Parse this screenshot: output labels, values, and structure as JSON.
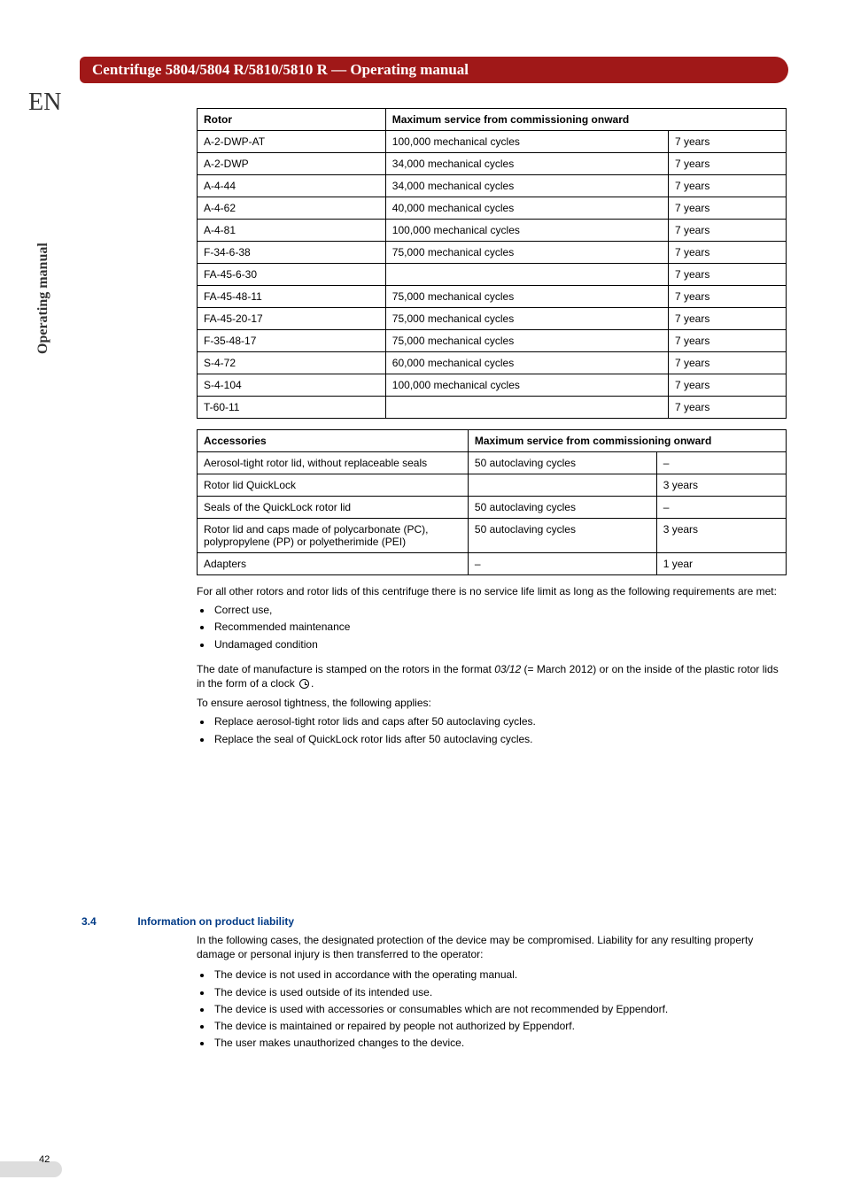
{
  "lang_badge": "EN",
  "side_label": "Operating manual",
  "header_title": "Centrifuge 5804/5804 R/5810/5810 R  —  Operating manual",
  "page_number": "42",
  "rotor_table": {
    "headers": {
      "rotor": "Rotor",
      "max_service": "Maximum service from commissioning onward"
    },
    "rows": [
      {
        "rotor": "A-2-DWP-AT",
        "cycles": "100,000 mechanical cycles",
        "years": "7 years"
      },
      {
        "rotor": "A-2-DWP",
        "cycles": "34,000 mechanical cycles",
        "years": "7 years"
      },
      {
        "rotor": "A-4-44",
        "cycles": "34,000 mechanical cycles",
        "years": "7 years"
      },
      {
        "rotor": "A-4-62",
        "cycles": "40,000 mechanical cycles",
        "years": "7 years"
      },
      {
        "rotor": "A-4-81",
        "cycles": "100,000 mechanical cycles",
        "years": "7 years"
      },
      {
        "rotor": "F-34-6-38",
        "cycles": "75,000 mechanical cycles",
        "years": "7 years"
      },
      {
        "rotor": "FA-45-6-30",
        "cycles": "",
        "years": "7 years"
      },
      {
        "rotor": "FA-45-48-11",
        "cycles": "75,000 mechanical cycles",
        "years": "7 years"
      },
      {
        "rotor": "FA-45-20-17",
        "cycles": "75,000 mechanical cycles",
        "years": "7 years"
      },
      {
        "rotor": "F-35-48-17",
        "cycles": "75,000 mechanical cycles",
        "years": "7 years"
      },
      {
        "rotor": "S-4-72",
        "cycles": "60,000 mechanical cycles",
        "years": "7 years"
      },
      {
        "rotor": "S-4-104",
        "cycles": "100,000 mechanical cycles",
        "years": "7 years"
      },
      {
        "rotor": "T-60-11",
        "cycles": "",
        "years": "7 years"
      }
    ],
    "col_widths": [
      "32%",
      "48%",
      "20%"
    ]
  },
  "acc_table": {
    "headers": {
      "acc": "Accessories",
      "max_service": "Maximum service from commissioning onward"
    },
    "rows": [
      {
        "acc": "Aerosol-tight rotor lid, without replaceable seals",
        "cycles": "50 autoclaving cycles",
        "years": "–"
      },
      {
        "acc": "Rotor lid QuickLock",
        "cycles": "",
        "years": "3 years"
      },
      {
        "acc": "Seals of the QuickLock rotor lid",
        "cycles": "50 autoclaving cycles",
        "years": "–"
      },
      {
        "acc": "Rotor lid and caps made of polycarbonate (PC), polypropylene (PP) or polyetherimide (PEI)",
        "cycles": "50 autoclaving cycles",
        "years": "3 years"
      },
      {
        "acc": "Adapters",
        "cycles": "–",
        "years": "1 year"
      }
    ],
    "col_widths": [
      "46%",
      "32%",
      "22%"
    ]
  },
  "para1": "For all other rotors and rotor lids of this centrifuge there is no service life limit as long as the following requirements are met:",
  "bullets1": [
    "Correct use,",
    "Recommended maintenance",
    "Undamaged condition"
  ],
  "para2_pre": "The date of manufacture is stamped on the rotors in the format ",
  "para2_date": "03/12",
  "para2_mid": " (= March 2012) or on the inside of the plastic rotor lids in the form of a clock ",
  "para2_post": ".",
  "para3": "To ensure aerosol tightness, the following applies:",
  "bullets2": [
    "Replace aerosol-tight rotor lids and caps after 50 autoclaving cycles.",
    "Replace the seal of QuickLock rotor lids after 50 autoclaving cycles."
  ],
  "section": {
    "num": "3.4",
    "title": "Information on product liability",
    "intro": "In the following cases, the designated protection of the device may be compromised. Liability for any resulting property damage or personal injury is then transferred to the operator:",
    "bullets": [
      "The device is not used in accordance with the operating manual.",
      "The device is used outside of its intended use.",
      "The device is used with accessories or consumables which are not recommended by Eppendorf.",
      "The device is maintained or repaired by people not authorized by Eppendorf.",
      "The user makes unauthorized changes to the device."
    ]
  }
}
